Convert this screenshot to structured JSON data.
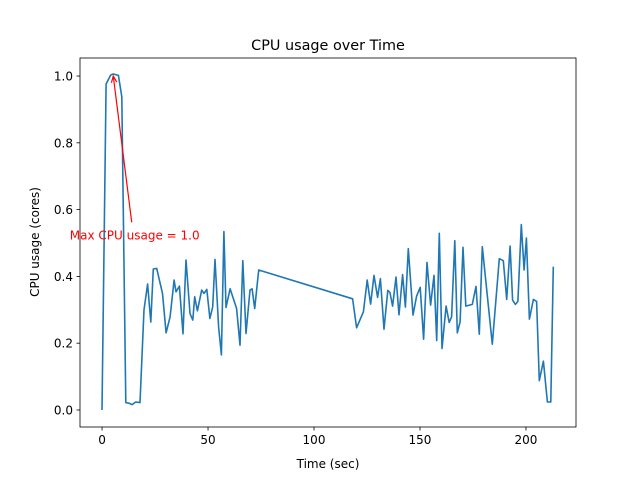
{
  "chart_data": {
    "type": "line",
    "title": "CPU usage over Time",
    "xlabel": "Time (sec)",
    "ylabel": "CPU usage (cores)",
    "xlim": [
      -10.4,
      223.6
    ],
    "ylim": [
      -0.051,
      1.054
    ],
    "xticks": [
      0,
      50,
      100,
      150,
      200
    ],
    "xtick_labels": [
      "0",
      "50",
      "100",
      "150",
      "200"
    ],
    "yticks": [
      0.0,
      0.2,
      0.4,
      0.6,
      0.8,
      1.0
    ],
    "ytick_labels": [
      "0.0",
      "0.2",
      "0.4",
      "0.6",
      "0.8",
      "1.0"
    ],
    "grid": false,
    "series": [
      {
        "name": "CPU usage",
        "color": "#1f77b4",
        "x": [
          0,
          1.9,
          4.1,
          5.3,
          7.7,
          9.3,
          11.2,
          12.9,
          14.2,
          15.9,
          17.9,
          19.8,
          21.5,
          23.0,
          24.2,
          25.8,
          28.5,
          30.2,
          32.1,
          34.0,
          34.9,
          36.5,
          38.2,
          39.6,
          41.5,
          42.8,
          43.7,
          45.0,
          47.0,
          48.1,
          49.4,
          50.9,
          52.2,
          53.3,
          55.0,
          56.3,
          57.5,
          58.5,
          60.4,
          63.5,
          65.1,
          66.4,
          67.9,
          69.8,
          70.8,
          72.0,
          73.9,
          118.2,
          120.1,
          123.3,
          125.1,
          126.7,
          128.3,
          130.0,
          131.3,
          133.0,
          134.8,
          135.8,
          137.1,
          138.7,
          140.1,
          141.8,
          143.1,
          144.5,
          146.7,
          148.4,
          150.1,
          151.7,
          153.3,
          155.0,
          156.6,
          157.9,
          159.1,
          160.4,
          162.3,
          163.8,
          164.9,
          166.4,
          167.6,
          168.9,
          170.3,
          171.6,
          174.7,
          176.4,
          178.0,
          179.4,
          184.1,
          187.4,
          189.3,
          190.9,
          192.5,
          193.7,
          195.0,
          196.2,
          197.8,
          199.1,
          200.2,
          201.6,
          203.5,
          205.0,
          206.3,
          208.2,
          210.1,
          211.7,
          212.9
        ],
        "y": [
          0,
          0.976,
          1.003,
          1.006,
          1.002,
          0.938,
          0.022,
          0.02,
          0.016,
          0.024,
          0.022,
          0.3,
          0.377,
          0.263,
          0.422,
          0.424,
          0.349,
          0.231,
          0.279,
          0.389,
          0.354,
          0.371,
          0.228,
          0.449,
          0.289,
          0.269,
          0.339,
          0.297,
          0.359,
          0.349,
          0.361,
          0.274,
          0.309,
          0.451,
          0.249,
          0.165,
          0.534,
          0.307,
          0.363,
          0.304,
          0.194,
          0.447,
          0.229,
          0.359,
          0.363,
          0.304,
          0.419,
          0.333,
          0.246,
          0.294,
          0.389,
          0.317,
          0.403,
          0.337,
          0.393,
          0.242,
          0.358,
          0.352,
          0.311,
          0.398,
          0.285,
          0.405,
          0.308,
          0.483,
          0.284,
          0.341,
          0.367,
          0.212,
          0.442,
          0.314,
          0.403,
          0.208,
          0.529,
          0.184,
          0.311,
          0.262,
          0.279,
          0.507,
          0.231,
          0.264,
          0.487,
          0.311,
          0.316,
          0.37,
          0.227,
          0.489,
          0.197,
          0.453,
          0.447,
          0.331,
          0.491,
          0.329,
          0.316,
          0.325,
          0.555,
          0.419,
          0.515,
          0.272,
          0.331,
          0.325,
          0.088,
          0.146,
          0.024,
          0.024,
          0.429
        ]
      }
    ],
    "annotation": {
      "text": "Max CPU usage = 1.0",
      "color": "#ff0000",
      "xy": [
        5.3,
        1.0
      ],
      "xytext": [
        14,
        0.52
      ]
    }
  }
}
